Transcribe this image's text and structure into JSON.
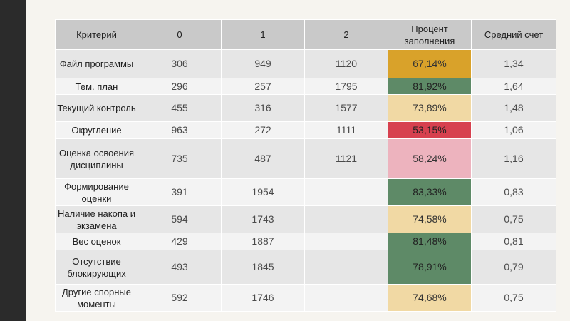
{
  "table": {
    "headers": [
      "Критерий",
      "0",
      "1",
      "2",
      "Процент заполнения",
      "Средний счет"
    ],
    "rows": [
      {
        "criterion": "Файл программы",
        "c0": "306",
        "c1": "949",
        "c2": "1120",
        "percent": "67,14%",
        "avg": "1,34",
        "color": "#d9a22a"
      },
      {
        "criterion": "Тем. план",
        "c0": "296",
        "c1": "257",
        "c2": "1795",
        "percent": "81,92%",
        "avg": "1,64",
        "color": "#5e8a67"
      },
      {
        "criterion": "Текущий контроль",
        "c0": "455",
        "c1": "316",
        "c2": "1577",
        "percent": "73,89%",
        "avg": "1,48",
        "color": "#f1d9a4"
      },
      {
        "criterion": "Округление",
        "c0": "963",
        "c1": "272",
        "c2": "1111",
        "percent": "53,15%",
        "avg": "1,06",
        "color": "#d7414f"
      },
      {
        "criterion": "Оценка освоения дисциплины",
        "c0": "735",
        "c1": "487",
        "c2": "1121",
        "percent": "58,24%",
        "avg": "1,16",
        "color": "#edb3be"
      },
      {
        "criterion": "Формирование оценки",
        "c0": "391",
        "c1": "1954",
        "c2": "",
        "percent": "83,33%",
        "avg": "0,83",
        "color": "#5e8a67"
      },
      {
        "criterion": "Наличие накопа и экзамена",
        "c0": "594",
        "c1": "1743",
        "c2": "",
        "percent": "74,58%",
        "avg": "0,75",
        "color": "#f1d9a4"
      },
      {
        "criterion": "Вес оценок",
        "c0": "429",
        "c1": "1887",
        "c2": "",
        "percent": "81,48%",
        "avg": "0,81",
        "color": "#5e8a67"
      },
      {
        "criterion": "Отсутствие блокирующих",
        "c0": "493",
        "c1": "1845",
        "c2": "",
        "percent": "78,91%",
        "avg": "0,79",
        "color": "#5e8a67"
      },
      {
        "criterion": "Другие спорные моменты",
        "c0": "592",
        "c1": "1746",
        "c2": "",
        "percent": "74,68%",
        "avg": "0,75",
        "color": "#f1d9a4"
      }
    ]
  }
}
